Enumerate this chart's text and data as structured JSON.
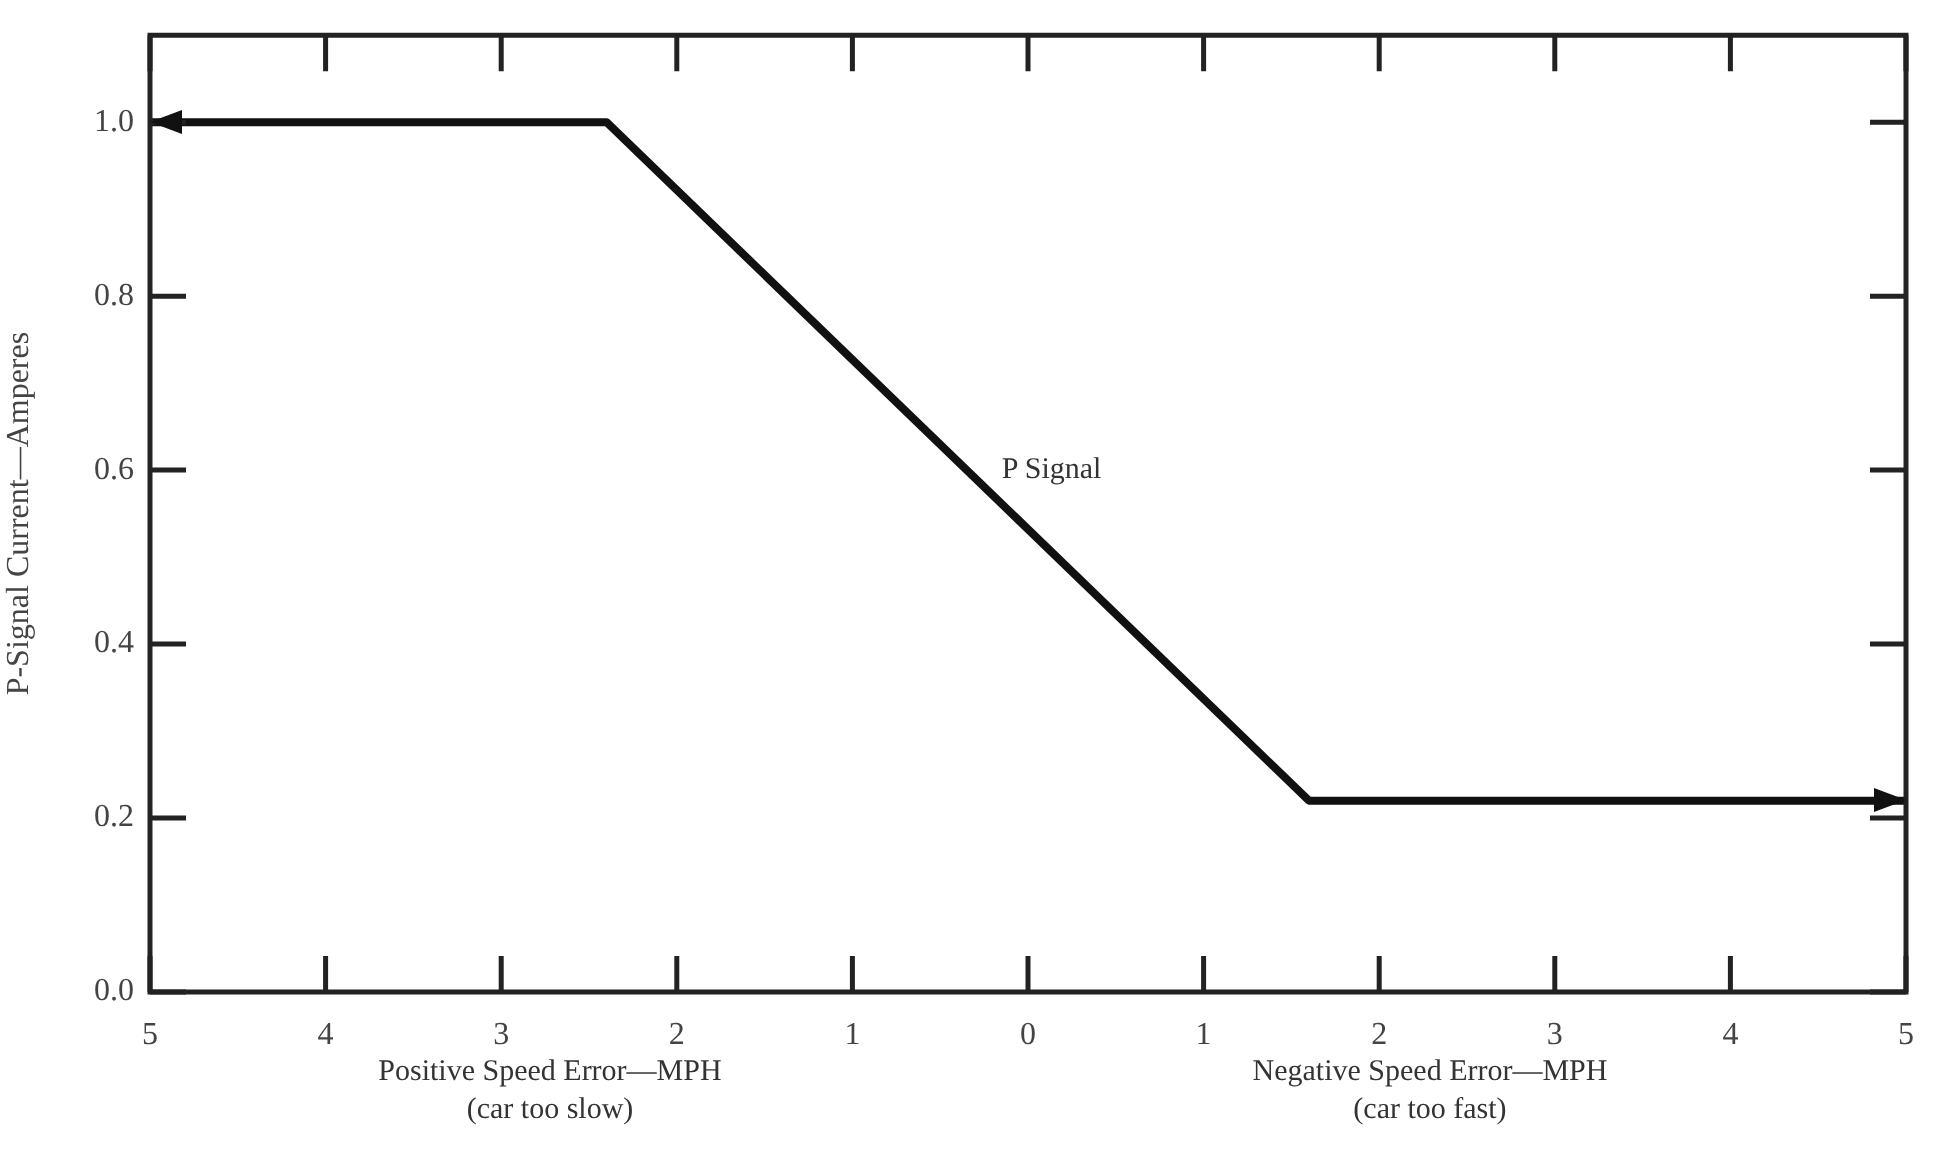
{
  "chart_data": {
    "type": "line",
    "ylabel": "P-Signal Current—Amperes",
    "x": [
      5,
      2.4,
      -1.6,
      -5
    ],
    "series": [
      {
        "color": "#111111",
        "values": [
          1.0,
          1.0,
          0.22,
          0.22
        ]
      }
    ],
    "xlim": [
      5,
      -5
    ],
    "xticks": [
      {
        "value": 5,
        "label": "5"
      },
      {
        "value": 4,
        "label": "4"
      },
      {
        "value": 3,
        "label": "3"
      },
      {
        "value": 2,
        "label": "2"
      },
      {
        "value": 1,
        "label": "1"
      },
      {
        "value": 0,
        "label": "0"
      },
      {
        "value": -1,
        "label": "1"
      },
      {
        "value": -2,
        "label": "2"
      },
      {
        "value": -3,
        "label": "3"
      },
      {
        "value": -4,
        "label": "4"
      },
      {
        "value": -5,
        "label": "5"
      }
    ],
    "ylim": [
      0,
      1.1
    ],
    "yticks": [
      {
        "value": 0,
        "label": "0.0"
      },
      {
        "value": 0.2,
        "label": "0.2"
      },
      {
        "value": 0.4,
        "label": "0.4"
      },
      {
        "value": 0.6,
        "label": "0.6"
      },
      {
        "value": 0.8,
        "label": "0.8"
      },
      {
        "value": 1.0,
        "label": "1.0"
      }
    ],
    "annotations": [
      "P Signal",
      "Positive Speed Error—MPH\n(car too slow)",
      "Negative Speed Error—MPH\n(car too fast)"
    ],
    "grid": false,
    "legend": false,
    "line_style": "solid"
  }
}
